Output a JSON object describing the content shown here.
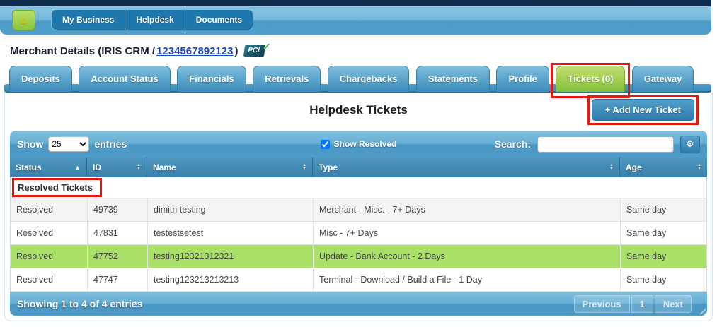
{
  "topbar": {
    "items": [
      {
        "label": "My Business"
      },
      {
        "label": "Helpdesk"
      },
      {
        "label": "Documents"
      }
    ]
  },
  "heading": {
    "prefix": "Merchant Details (IRIS CRM /",
    "merchant_id": "1234567892123",
    "suffix": ")",
    "pci_label": "PCI"
  },
  "tabs": [
    {
      "label": "Deposits"
    },
    {
      "label": "Account Status"
    },
    {
      "label": "Financials"
    },
    {
      "label": "Retrievals"
    },
    {
      "label": "Chargebacks"
    },
    {
      "label": "Statements"
    },
    {
      "label": "Profile"
    },
    {
      "label": "Tickets (0)"
    },
    {
      "label": "Gateway"
    }
  ],
  "active_tab": "Tickets (0)",
  "main": {
    "title": "Helpdesk Tickets",
    "add_ticket_label": "+ Add New Ticket"
  },
  "toolbar": {
    "show_label": "Show",
    "page_size": "25",
    "entries_label": "entries",
    "show_resolved_label": "Show Resolved",
    "show_resolved_checked": "checked",
    "search_label": "Search:",
    "search_value": ""
  },
  "icons": {
    "home": "⌂",
    "gear": "⚙",
    "sort_asc": "▲",
    "sort_desc": "▼",
    "pci_check": "✓"
  },
  "table": {
    "columns": [
      {
        "label": "Status"
      },
      {
        "label": "ID"
      },
      {
        "label": "Name"
      },
      {
        "label": "Type"
      },
      {
        "label": "Age"
      }
    ],
    "group_header": "Resolved Tickets",
    "rows": [
      {
        "status": "Resolved",
        "id": "49739",
        "name": "dimitri testing",
        "type": "Merchant - Misc. - 7+ Days",
        "age": "Same day"
      },
      {
        "status": "Resolved",
        "id": "47831",
        "name": "testestsetest",
        "type": "Misc - 7+ Days",
        "age": "Same day"
      },
      {
        "status": "Resolved",
        "id": "47752",
        "name": "testing12321312321",
        "type": "Update - Bank Account - 2 Days",
        "age": "Same day"
      },
      {
        "status": "Resolved",
        "id": "47747",
        "name": "testing123213213213",
        "type": "Terminal - Download / Build a File - 1 Day",
        "age": "Same day"
      }
    ]
  },
  "footer": {
    "summary": "Showing 1 to 4 of 4 entries",
    "pagination": {
      "previous": "Previous",
      "page": "1",
      "next": "Next"
    }
  },
  "colors": {
    "annotation_red": "#ec1509",
    "active_tab_green": "#8cc43f",
    "highlight_row_green": "#a9e068",
    "bar_blue": "#4e9bc8",
    "header_blue": "#3a7fa9",
    "link_blue": "#1b46c8",
    "topstrip_navy": "#0d2c4e"
  }
}
